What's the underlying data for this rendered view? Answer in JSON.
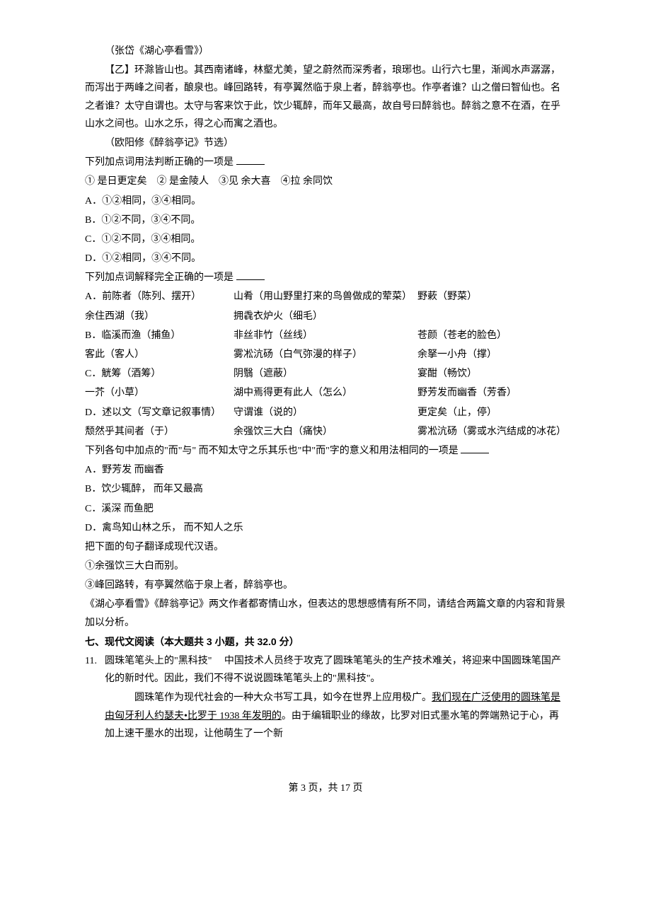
{
  "source1": "（张岱《湖心亭看雪》）",
  "yi_intro": "【乙】环滁皆山也。其西南诸峰，林壑尤美，望之蔚然而深秀者，琅琊也。山行六七里，渐闻水声潺潺，而泻出于两峰之间者，酿泉也。峰回路转，有亭翼然临于泉上者，醉翁亭也。作亭者谁？山之僧曰智仙也。名之者谁？太守自谓也。太守与客来饮于此，饮少辄醉，而年又最高，故自号曰醉翁也。醉翁之意不在酒，在乎山水之间也。山水之乐，得之心而寓之酒也。",
  "source2": "（欧阳修《醉翁亭记》节选）",
  "q_yongfa": "下列加点词用法判断正确的一项是",
  "items_nums": "①  是日更定矣　② 是金陵人　③见 余大喜　④拉 余同饮",
  "yongfa_a": "A．①②相同，③④相同。",
  "yongfa_b": "B．①②不同，③④不同。",
  "yongfa_c": "C．①②不同，③④相同。",
  "yongfa_d": "D．①②相同，③④不同。",
  "q_jieshi": "下列加点词解释完全正确的一项是",
  "rowA": {
    "c1": "A．前陈者（陈列、摆开）",
    "c2": "山肴（用山野里打来的鸟兽做成的荤菜）",
    "c3": "野蔌（野菜）"
  },
  "rowA2": {
    "c1": "余住西湖（我）",
    "c2": "拥毳衣炉火（细毛）",
    "c3": ""
  },
  "rowB": {
    "c1": "B．临溪而渔（捕鱼）",
    "c2": "非丝非竹（丝线）",
    "c3": "苍颜（苍老的脸色）"
  },
  "rowB2": {
    "c1": "客此（客人）",
    "c2": "雾凇沆砀（白气弥漫的样子）",
    "c3": "余拏一小舟（撑）"
  },
  "rowC": {
    "c1": "C．觥筹（酒筹）",
    "c2": "阴翳（遮蔽）",
    "c3": "宴酣（畅饮）"
  },
  "rowC2": {
    "c1": "一芥（小草）",
    "c2": "湖中焉得更有此人（怎么）",
    "c3": "野芳发而幽香（芳香）"
  },
  "rowD": {
    "c1": "D．述以文（写文章记叙事情）",
    "c2": "守谓谁（说的）",
    "c3": "更定矣（止，停）"
  },
  "rowD2": {
    "c1": "颓然乎其间者（于）",
    "c2": "余强饮三大白（痛快）",
    "c3": "雾凇沆砀（雾或水汽结成的冰花）"
  },
  "q_er": "下列各句中加点的\"而\"与\" 而不知太守之乐其乐也\"中\"而\"字的意义和用法相同的一项是",
  "er_a": "A．野芳发 而幽香",
  "er_b": "B．饮少辄醉， 而年又最高",
  "er_c": "C．溪深 而鱼肥",
  "er_d": "D．禽鸟知山林之乐， 而不知人之乐",
  "q_trans": "把下面的句子翻译成现代汉语。",
  "trans1": "①余强饮三大白而别。",
  "trans2": "③峰回路转，有亭翼然临于泉上者，醉翁亭也。",
  "q_analysis": "《湖心亭看雪》《醉翁亭记》两文作者都寄情山水，但表达的思想感情有所不同，请结合两篇文章的内容和背景加以分析。",
  "section7": "七、现代文阅读（本大题共 3 小题，共 32.0 分）",
  "q11_num": "11.",
  "q11_p1a": "圆珠笔笔头上的\"黑科技\"　 中国技术人员终于攻克了圆珠笔笔头的生产技术难关，将迎来中国圆珠笔国产化的新时代。因此，我们不得不说说圆珠笔笔头上的\"黑科技\"。",
  "q11_p2a": "　圆珠笔作为现代社会的一种大众书写工具，如今在世界上应用极广。",
  "q11_p2b": "我们现在广泛使用的圆珠笔是由匈牙利人约瑟夫•比罗于 1938 年发明的",
  "q11_p2c": "。由于编辑职业的缘故，比罗对旧式墨水笔的弊端熟记于心，再加上速干墨水的出现，让他萌生了一个新",
  "footer": "第 3 页，共 17 页"
}
